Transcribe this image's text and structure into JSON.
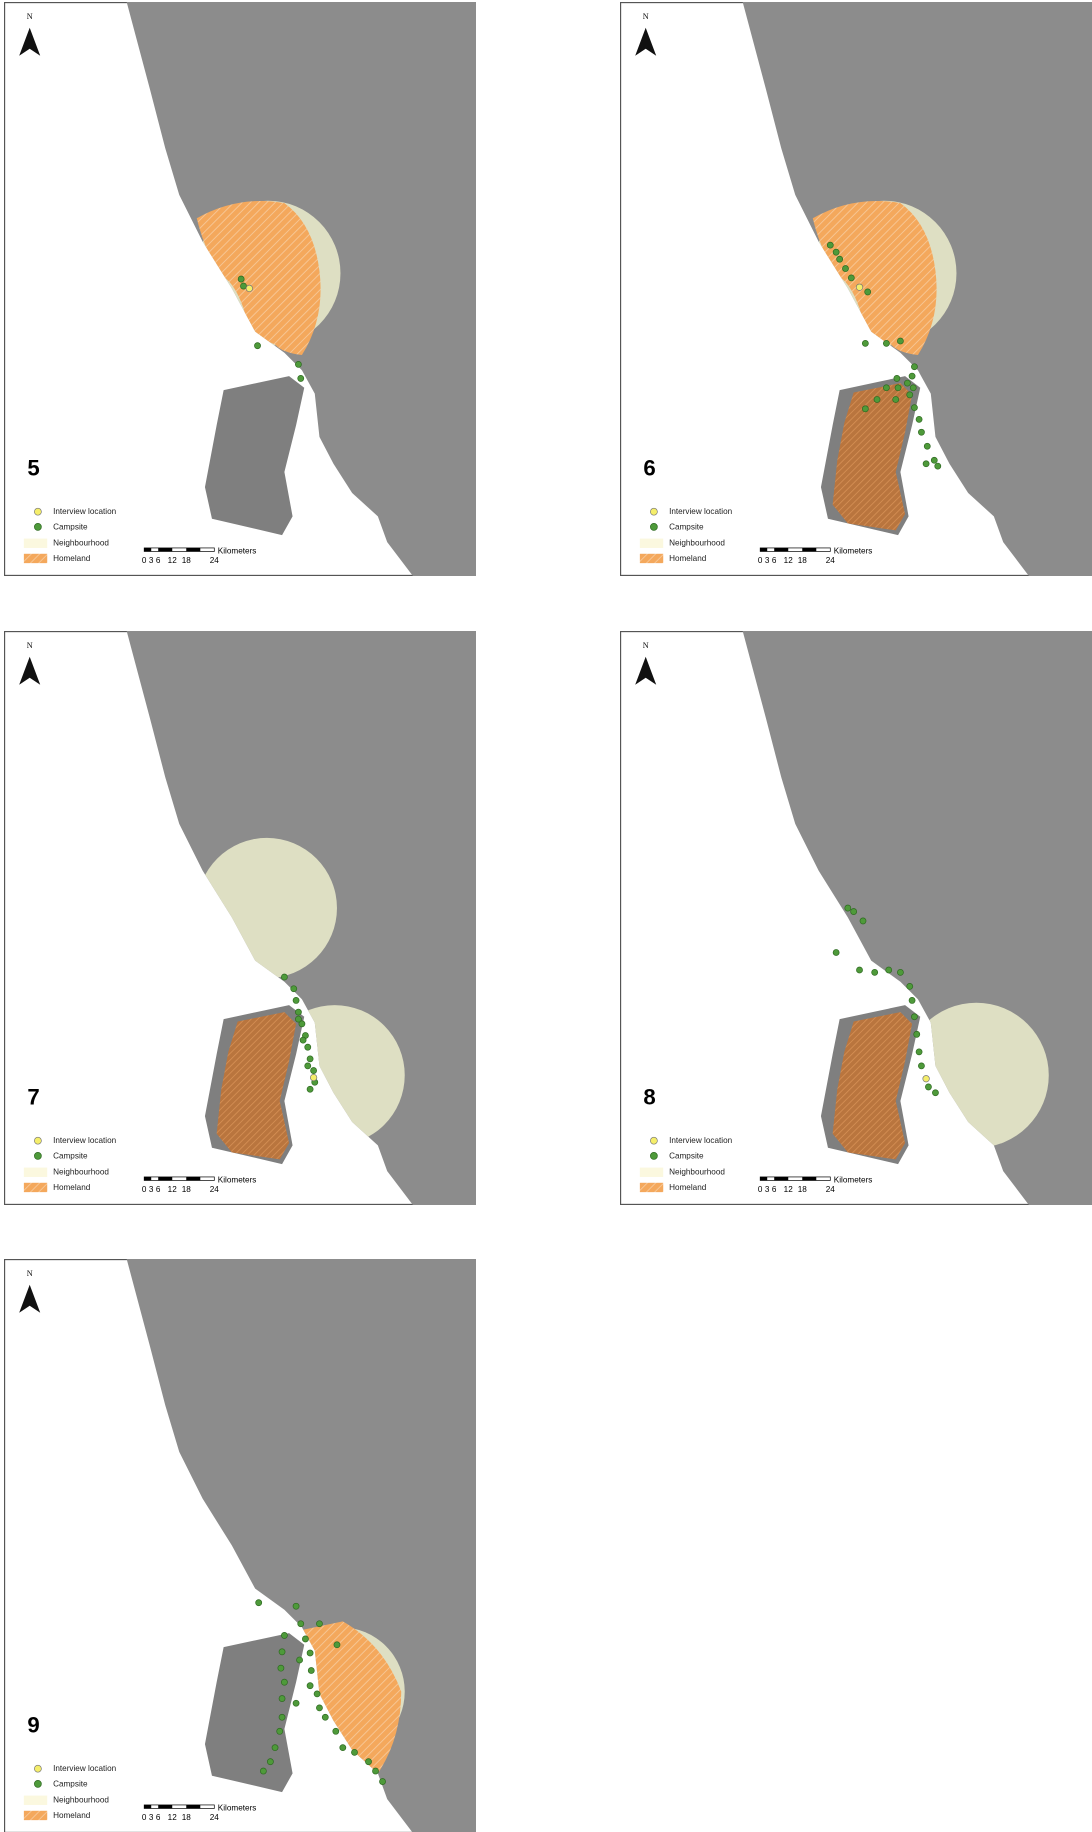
{
  "panels": [
    {
      "label": "5"
    },
    {
      "label": "6"
    },
    {
      "label": "7"
    },
    {
      "label": "8"
    },
    {
      "label": "9"
    }
  ],
  "north": "N",
  "legend": {
    "interview": "Interview location",
    "campsite": "Campsite",
    "neighbourhood": "Neighbourhood",
    "homeland": "Homeland"
  },
  "scale": {
    "unit": "Kilometers",
    "ticks": [
      "0",
      "3",
      "6",
      "12",
      "18",
      "24"
    ]
  }
}
